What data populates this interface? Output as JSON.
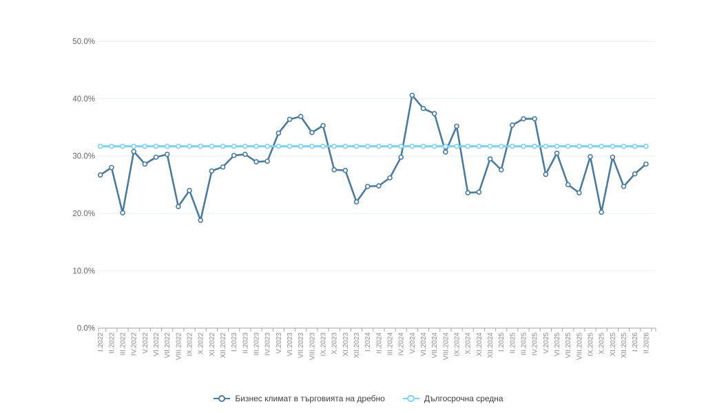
{
  "chart_data": {
    "type": "line",
    "title": "",
    "xlabel": "",
    "ylabel": "",
    "ylim": [
      0,
      50
    ],
    "yticks": [
      0,
      10,
      20,
      30,
      40,
      50
    ],
    "ytick_labels": [
      "0.0%",
      "10.0%",
      "20.0%",
      "30.0%",
      "40.0%",
      "50.0%"
    ],
    "grid": true,
    "legend_position": "bottom",
    "categories": [
      "I.2022",
      "II.2022",
      "III.2022",
      "IV.2022",
      "V.2022",
      "VI.2022",
      "VII.2022",
      "VIII.2022",
      "IX.2022",
      "X.2022",
      "XI.2022",
      "XII.2022",
      "I.2023",
      "II.2023",
      "III.2023",
      "IV.2023",
      "V.2023",
      "VI.2023",
      "VII.2023",
      "VIII.2023",
      "IX.2023",
      "X.2023",
      "XI.2023",
      "XII.2023",
      "I.2024",
      "II.2024",
      "III.2024",
      "IV.2024",
      "V.2024",
      "VI.2024",
      "VII.2024",
      "VIII.2024",
      "IX.2024",
      "X.2024",
      "XI.2024",
      "XII.2024",
      "I.2025",
      "II.2025",
      "III.2025",
      "IV.2025",
      "V.2025",
      "VI.2025",
      "VII.2025",
      "VIII.2025",
      "IX.2025",
      "X.2025",
      "XI.2025",
      "XII.2025",
      "I.2026",
      "II.2026"
    ],
    "series": [
      {
        "name": "Бизнес климат в търговията на дребно",
        "color": "#4a7b9e",
        "marker": "open-circle",
        "values": [
          26.7,
          28.0,
          20.1,
          30.8,
          28.6,
          29.8,
          30.3,
          21.2,
          24.0,
          18.8,
          27.4,
          28.1,
          30.1,
          30.3,
          29.0,
          29.1,
          34.0,
          36.4,
          36.9,
          34.1,
          35.3,
          27.6,
          27.5,
          22.0,
          24.7,
          24.8,
          26.2,
          29.8,
          40.6,
          38.3,
          37.4,
          30.7,
          35.2,
          23.6,
          23.7,
          29.5,
          27.6,
          35.4,
          36.5,
          36.5,
          26.8,
          30.5,
          25.0,
          23.6,
          29.9,
          20.2,
          29.8,
          24.7,
          26.9,
          28.6
        ]
      },
      {
        "name": "Дългосрочна средна",
        "color": "#7ed2f4",
        "marker": "open-circle",
        "constant_value": 31.7
      }
    ],
    "colors": {
      "gridline": "#e7edf2",
      "axis_line": "#a6a6a6",
      "tick": "#a6a6a6",
      "y_tick_label": "#666666",
      "x_tick_label": "#8c8c8c",
      "background": "#ffffff"
    }
  },
  "legend": {
    "items": [
      {
        "label": "Бизнес климат в търговията на дребно"
      },
      {
        "label": "Дългосрочна средна"
      }
    ]
  }
}
